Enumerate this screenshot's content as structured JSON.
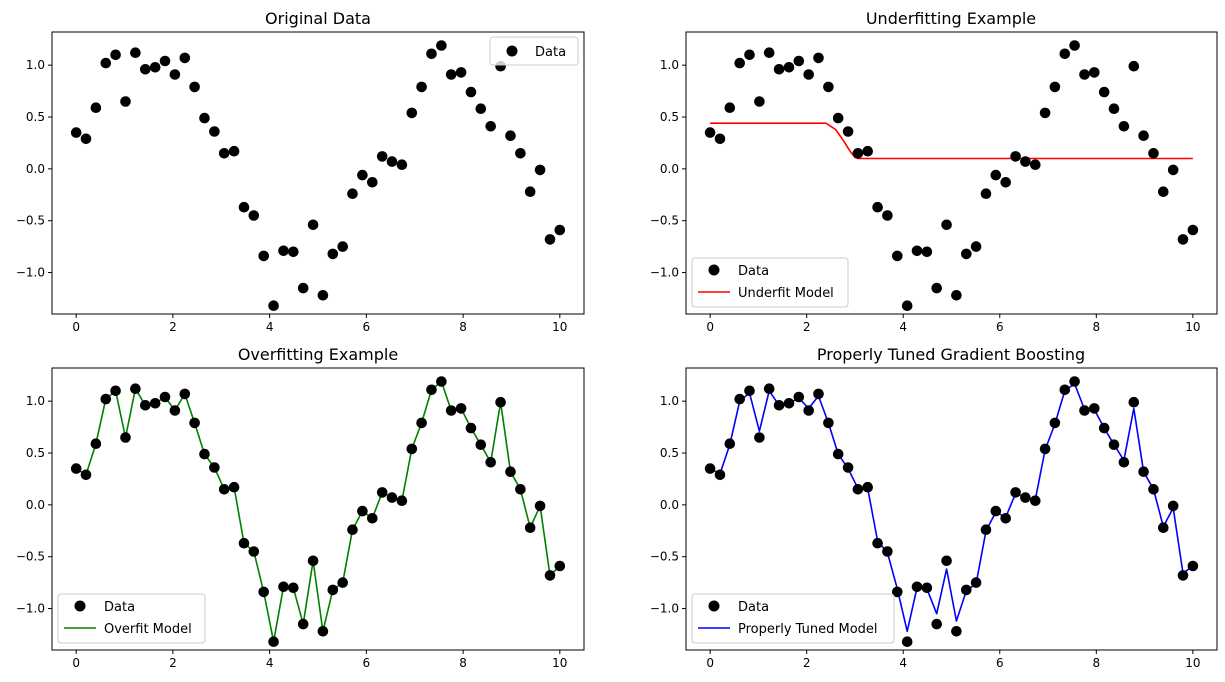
{
  "chart_data": [
    {
      "type": "scatter",
      "title": "Original Data",
      "xlabel": "",
      "ylabel": "",
      "xlim": [
        -0.5,
        10.5
      ],
      "ylim": [
        -1.4,
        1.32
      ],
      "xticks": [
        0,
        2,
        4,
        6,
        8,
        10
      ],
      "yticks": [
        -1.0,
        -0.5,
        0.0,
        0.5,
        1.0
      ],
      "legend_position": "upper right",
      "grid": false,
      "series": [
        {
          "name": "Data",
          "kind": "scatter",
          "color": "#000000",
          "x": [
            0.0,
            0.204,
            0.408,
            0.612,
            0.816,
            1.02,
            1.224,
            1.429,
            1.633,
            1.837,
            2.041,
            2.245,
            2.449,
            2.653,
            2.857,
            3.061,
            3.265,
            3.469,
            3.673,
            3.878,
            4.082,
            4.286,
            4.49,
            4.694,
            4.898,
            5.102,
            5.306,
            5.51,
            5.714,
            5.918,
            6.122,
            6.327,
            6.531,
            6.735,
            6.939,
            7.143,
            7.347,
            7.551,
            7.755,
            7.959,
            8.163,
            8.367,
            8.571,
            8.776,
            8.98,
            9.184,
            9.388,
            9.592,
            9.796,
            10.0
          ],
          "y": [
            0.35,
            0.29,
            0.59,
            1.02,
            1.1,
            0.65,
            1.12,
            0.96,
            0.98,
            1.04,
            0.91,
            1.07,
            0.79,
            0.49,
            0.36,
            0.15,
            0.17,
            -0.37,
            -0.45,
            -0.84,
            -1.32,
            -0.79,
            -0.8,
            -1.15,
            -0.54,
            -1.22,
            -0.82,
            -0.75,
            -0.24,
            -0.06,
            -0.13,
            0.12,
            0.07,
            0.04,
            0.54,
            0.79,
            1.11,
            1.19,
            0.91,
            0.93,
            0.74,
            0.58,
            0.41,
            0.99,
            0.32,
            0.15,
            -0.22,
            -0.01,
            -0.68,
            -0.59
          ]
        }
      ]
    },
    {
      "type": "scatter",
      "title": "Underfitting Example",
      "xlabel": "",
      "ylabel": "",
      "xlim": [
        -0.5,
        10.5
      ],
      "ylim": [
        -1.4,
        1.32
      ],
      "xticks": [
        0,
        2,
        4,
        6,
        8,
        10
      ],
      "yticks": [
        -1.0,
        -0.5,
        0.0,
        0.5,
        1.0
      ],
      "legend_position": "lower left",
      "grid": false,
      "series": [
        {
          "name": "Data",
          "kind": "scatter",
          "color": "#000000",
          "x": [
            0.0,
            0.204,
            0.408,
            0.612,
            0.816,
            1.02,
            1.224,
            1.429,
            1.633,
            1.837,
            2.041,
            2.245,
            2.449,
            2.653,
            2.857,
            3.061,
            3.265,
            3.469,
            3.673,
            3.878,
            4.082,
            4.286,
            4.49,
            4.694,
            4.898,
            5.102,
            5.306,
            5.51,
            5.714,
            5.918,
            6.122,
            6.327,
            6.531,
            6.735,
            6.939,
            7.143,
            7.347,
            7.551,
            7.755,
            7.959,
            8.163,
            8.367,
            8.571,
            8.776,
            8.98,
            9.184,
            9.388,
            9.592,
            9.796,
            10.0
          ],
          "y": [
            0.35,
            0.29,
            0.59,
            1.02,
            1.1,
            0.65,
            1.12,
            0.96,
            0.98,
            1.04,
            0.91,
            1.07,
            0.79,
            0.49,
            0.36,
            0.15,
            0.17,
            -0.37,
            -0.45,
            -0.84,
            -1.32,
            -0.79,
            -0.8,
            -1.15,
            -0.54,
            -1.22,
            -0.82,
            -0.75,
            -0.24,
            -0.06,
            -0.13,
            0.12,
            0.07,
            0.04,
            0.54,
            0.79,
            1.11,
            1.19,
            0.91,
            0.93,
            0.74,
            0.58,
            0.41,
            0.99,
            0.32,
            0.15,
            -0.22,
            -0.01,
            -0.68,
            -0.59
          ]
        },
        {
          "name": "Underfit Model",
          "kind": "line",
          "color": "#ff0000",
          "x": [
            0.0,
            2.4,
            2.6,
            2.75,
            2.9,
            3.0,
            3.06,
            10.0
          ],
          "y": [
            0.44,
            0.44,
            0.38,
            0.28,
            0.17,
            0.11,
            0.1,
            0.1
          ]
        }
      ]
    },
    {
      "type": "scatter",
      "title": "Overfitting Example",
      "xlabel": "",
      "ylabel": "",
      "xlim": [
        -0.5,
        10.5
      ],
      "ylim": [
        -1.4,
        1.32
      ],
      "xticks": [
        0,
        2,
        4,
        6,
        8,
        10
      ],
      "yticks": [
        -1.0,
        -0.5,
        0.0,
        0.5,
        1.0
      ],
      "legend_position": "lower left",
      "grid": false,
      "series": [
        {
          "name": "Data",
          "kind": "scatter",
          "color": "#000000",
          "x": [
            0.0,
            0.204,
            0.408,
            0.612,
            0.816,
            1.02,
            1.224,
            1.429,
            1.633,
            1.837,
            2.041,
            2.245,
            2.449,
            2.653,
            2.857,
            3.061,
            3.265,
            3.469,
            3.673,
            3.878,
            4.082,
            4.286,
            4.49,
            4.694,
            4.898,
            5.102,
            5.306,
            5.51,
            5.714,
            5.918,
            6.122,
            6.327,
            6.531,
            6.735,
            6.939,
            7.143,
            7.347,
            7.551,
            7.755,
            7.959,
            8.163,
            8.367,
            8.571,
            8.776,
            8.98,
            9.184,
            9.388,
            9.592,
            9.796,
            10.0
          ],
          "y": [
            0.35,
            0.29,
            0.59,
            1.02,
            1.1,
            0.65,
            1.12,
            0.96,
            0.98,
            1.04,
            0.91,
            1.07,
            0.79,
            0.49,
            0.36,
            0.15,
            0.17,
            -0.37,
            -0.45,
            -0.84,
            -1.32,
            -0.79,
            -0.8,
            -1.15,
            -0.54,
            -1.22,
            -0.82,
            -0.75,
            -0.24,
            -0.06,
            -0.13,
            0.12,
            0.07,
            0.04,
            0.54,
            0.79,
            1.11,
            1.19,
            0.91,
            0.93,
            0.74,
            0.58,
            0.41,
            0.99,
            0.32,
            0.15,
            -0.22,
            -0.01,
            -0.68,
            -0.59
          ]
        },
        {
          "name": "Overfit Model",
          "kind": "line",
          "color": "#008000",
          "x": [
            0.0,
            0.204,
            0.408,
            0.612,
            0.816,
            1.02,
            1.224,
            1.429,
            1.633,
            1.837,
            2.041,
            2.245,
            2.449,
            2.653,
            2.857,
            3.061,
            3.265,
            3.469,
            3.673,
            3.878,
            4.082,
            4.286,
            4.49,
            4.694,
            4.898,
            5.102,
            5.306,
            5.51,
            5.714,
            5.918,
            6.122,
            6.327,
            6.531,
            6.735,
            6.939,
            7.143,
            7.347,
            7.551,
            7.755,
            7.959,
            8.163,
            8.367,
            8.571,
            8.776,
            8.98,
            9.184,
            9.388,
            9.592,
            9.796,
            10.0
          ],
          "y": [
            0.35,
            0.29,
            0.59,
            1.02,
            1.1,
            0.65,
            1.12,
            0.96,
            0.98,
            1.04,
            0.91,
            1.07,
            0.79,
            0.49,
            0.36,
            0.15,
            0.17,
            -0.37,
            -0.45,
            -0.84,
            -1.32,
            -0.79,
            -0.8,
            -1.15,
            -0.54,
            -1.22,
            -0.82,
            -0.75,
            -0.24,
            -0.06,
            -0.13,
            0.12,
            0.07,
            0.04,
            0.54,
            0.79,
            1.11,
            1.19,
            0.91,
            0.93,
            0.74,
            0.58,
            0.41,
            0.99,
            0.32,
            0.15,
            -0.22,
            -0.01,
            -0.68,
            -0.59
          ]
        }
      ]
    },
    {
      "type": "scatter",
      "title": "Properly Tuned Gradient Boosting",
      "xlabel": "",
      "ylabel": "",
      "xlim": [
        -0.5,
        10.5
      ],
      "ylim": [
        -1.4,
        1.32
      ],
      "xticks": [
        0,
        2,
        4,
        6,
        8,
        10
      ],
      "yticks": [
        -1.0,
        -0.5,
        0.0,
        0.5,
        1.0
      ],
      "legend_position": "lower left",
      "grid": false,
      "series": [
        {
          "name": "Data",
          "kind": "scatter",
          "color": "#000000",
          "x": [
            0.0,
            0.204,
            0.408,
            0.612,
            0.816,
            1.02,
            1.224,
            1.429,
            1.633,
            1.837,
            2.041,
            2.245,
            2.449,
            2.653,
            2.857,
            3.061,
            3.265,
            3.469,
            3.673,
            3.878,
            4.082,
            4.286,
            4.49,
            4.694,
            4.898,
            5.102,
            5.306,
            5.51,
            5.714,
            5.918,
            6.122,
            6.327,
            6.531,
            6.735,
            6.939,
            7.143,
            7.347,
            7.551,
            7.755,
            7.959,
            8.163,
            8.367,
            8.571,
            8.776,
            8.98,
            9.184,
            9.388,
            9.592,
            9.796,
            10.0
          ],
          "y": [
            0.35,
            0.29,
            0.59,
            1.02,
            1.1,
            0.65,
            1.12,
            0.96,
            0.98,
            1.04,
            0.91,
            1.07,
            0.79,
            0.49,
            0.36,
            0.15,
            0.17,
            -0.37,
            -0.45,
            -0.84,
            -1.32,
            -0.79,
            -0.8,
            -1.15,
            -0.54,
            -1.22,
            -0.82,
            -0.75,
            -0.24,
            -0.06,
            -0.13,
            0.12,
            0.07,
            0.04,
            0.54,
            0.79,
            1.11,
            1.19,
            0.91,
            0.93,
            0.74,
            0.58,
            0.41,
            0.99,
            0.32,
            0.15,
            -0.22,
            -0.01,
            -0.68,
            -0.59
          ]
        },
        {
          "name": "Properly Tuned Model",
          "kind": "line",
          "color": "#0000ff",
          "x": [
            0.0,
            0.204,
            0.408,
            0.612,
            0.816,
            1.02,
            1.224,
            1.429,
            1.633,
            1.837,
            2.041,
            2.245,
            2.449,
            2.653,
            2.857,
            3.061,
            3.265,
            3.469,
            3.673,
            3.878,
            4.082,
            4.286,
            4.49,
            4.694,
            4.898,
            5.102,
            5.306,
            5.51,
            5.714,
            5.918,
            6.122,
            6.327,
            6.531,
            6.735,
            6.939,
            7.143,
            7.347,
            7.551,
            7.755,
            7.959,
            8.163,
            8.367,
            8.571,
            8.776,
            8.98,
            9.184,
            9.388,
            9.592,
            9.796,
            10.0
          ],
          "y": [
            0.35,
            0.3,
            0.58,
            1.0,
            1.08,
            0.71,
            1.1,
            0.96,
            0.98,
            1.03,
            0.93,
            1.05,
            0.79,
            0.49,
            0.35,
            0.16,
            0.16,
            -0.35,
            -0.46,
            -0.81,
            -1.22,
            -0.8,
            -0.81,
            -1.05,
            -0.62,
            -1.12,
            -0.83,
            -0.76,
            -0.25,
            -0.07,
            -0.12,
            0.11,
            0.07,
            0.05,
            0.53,
            0.78,
            1.1,
            1.17,
            0.92,
            0.92,
            0.74,
            0.58,
            0.43,
            0.93,
            0.32,
            0.15,
            -0.21,
            -0.03,
            -0.66,
            -0.59
          ]
        }
      ]
    }
  ]
}
